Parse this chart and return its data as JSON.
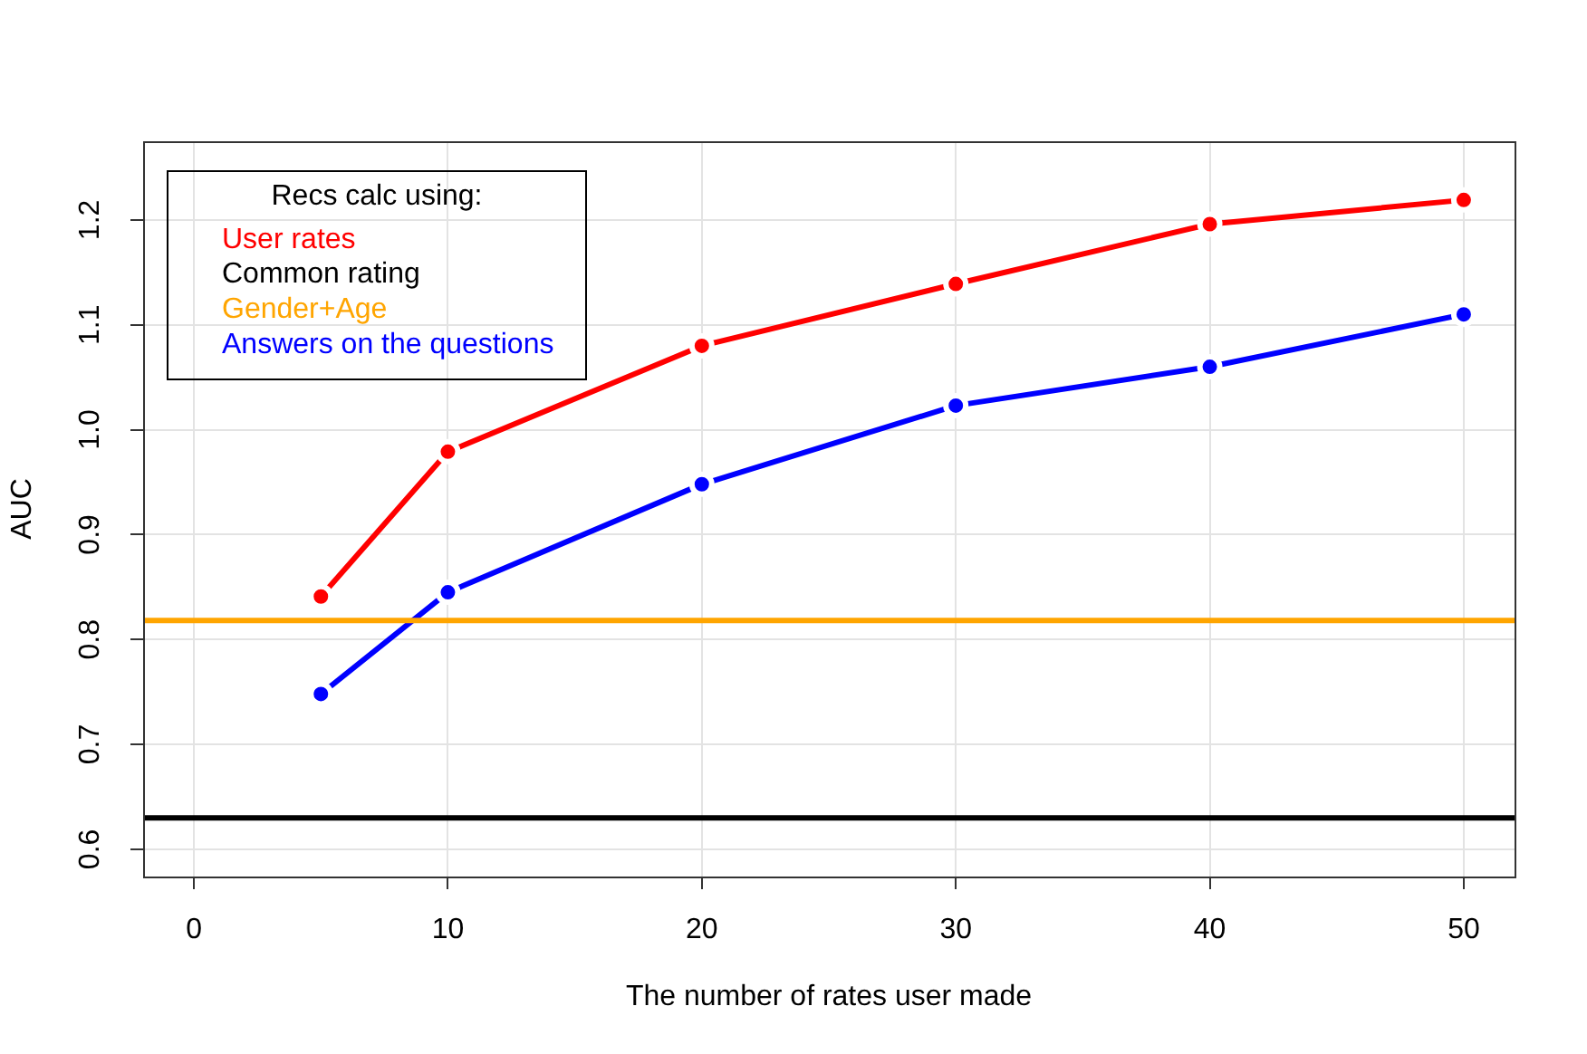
{
  "chart_data": {
    "type": "line",
    "xlabel": "The number of rates user made",
    "ylabel": "AUC",
    "legend_title": "Recs calc using:",
    "legend": "top left",
    "grid": true,
    "line_style": "solid",
    "marker": "circle",
    "x": [
      5,
      10,
      20,
      30,
      40,
      50
    ],
    "xlim": [
      -2,
      52
    ],
    "xticks": [
      0,
      10,
      20,
      30,
      40,
      50
    ],
    "ylim": [
      0.574,
      1.275
    ],
    "yticks": [
      0.6,
      0.7,
      0.8,
      0.9,
      {
        "value": 1,
        "label": "1.0"
      },
      1.1,
      1.2
    ],
    "series": [
      {
        "name": "User rates",
        "color": "#ff0000",
        "values": [
          0.841,
          0.979,
          1.08,
          1.139,
          1.196,
          1.219
        ]
      },
      {
        "name": "Answers on the questions",
        "color": "#0000ff",
        "values": [
          0.748,
          0.845,
          0.948,
          1.023,
          1.06,
          1.11
        ]
      }
    ],
    "ref_lines": [
      {
        "axis": "y",
        "value": 0.63,
        "label": "Common rating",
        "color": "#000000"
      },
      {
        "axis": "y",
        "value": 0.818,
        "label": "Gender+Age",
        "color": "#ffa500"
      }
    ]
  }
}
